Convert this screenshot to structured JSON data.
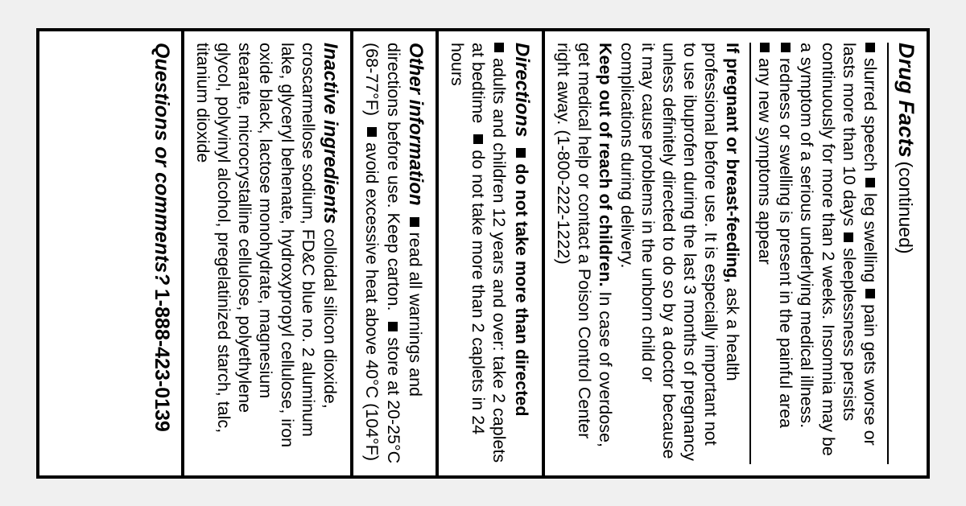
{
  "colors": {
    "border": "#000000",
    "background": "#ffffff",
    "text": "#000000"
  },
  "header": {
    "title": "Drug Facts",
    "continued": "(continued)"
  },
  "warnings_continued": {
    "bullets_line1_a": "slurred speech",
    "bullets_line1_b": "leg swelling",
    "bullets_line1_c": "pain gets worse or lasts more than 10 days",
    "bullets_line2_a": "sleeplessness persists continuously for more than 2 weeks. Insomnia may be a symptom of a serious underlying medical illness.",
    "bullets_line3": "redness or swelling is present in the painful area",
    "bullets_line4": "any new symptoms appear",
    "pregnant_bold": "If pregnant or breast-feeding,",
    "pregnant_text": " ask a health professional before use. It is especially important not to use ibuprofen during the last 3 months of pregnancy unless definitely directed to do so by a doctor because it may cause problems in the unborn child or complications during delivery.",
    "keep_bold": "Keep out of reach of children.",
    "keep_text": " In case of overdose, get medical help or contact a Poison Control Center right away. (1-800-222-1222)"
  },
  "directions": {
    "heading": "Directions",
    "do_not": "do not take more than directed",
    "line2": "adults and children 12 years and over: take 2 caplets at bedtime",
    "line3": "do not take more than 2 caplets in 24 hours"
  },
  "other_info": {
    "heading": "Other information",
    "b1": "read all warnings and directions before use. Keep carton.",
    "b2": "store at 20-25°C (68-77°F)",
    "b3": "avoid excessive heat above 40°C (104°F)"
  },
  "inactive": {
    "heading": "Inactive ingredients",
    "text": " colloidal silicon dioxide, croscarmellose sodium, FD&C blue no. 2 aluminum lake, glyceryl behenate, hydroxypropyl cellulose, iron oxide black, lactose monohydrate, magnesium stearate, microcrystalline cellulose, polyethylene glycol, polyvinyl alcohol, pregelatinized starch, talc, titanium dioxide"
  },
  "questions": {
    "title": "Questions or comments?",
    "phone": "1-888-423-0139"
  }
}
